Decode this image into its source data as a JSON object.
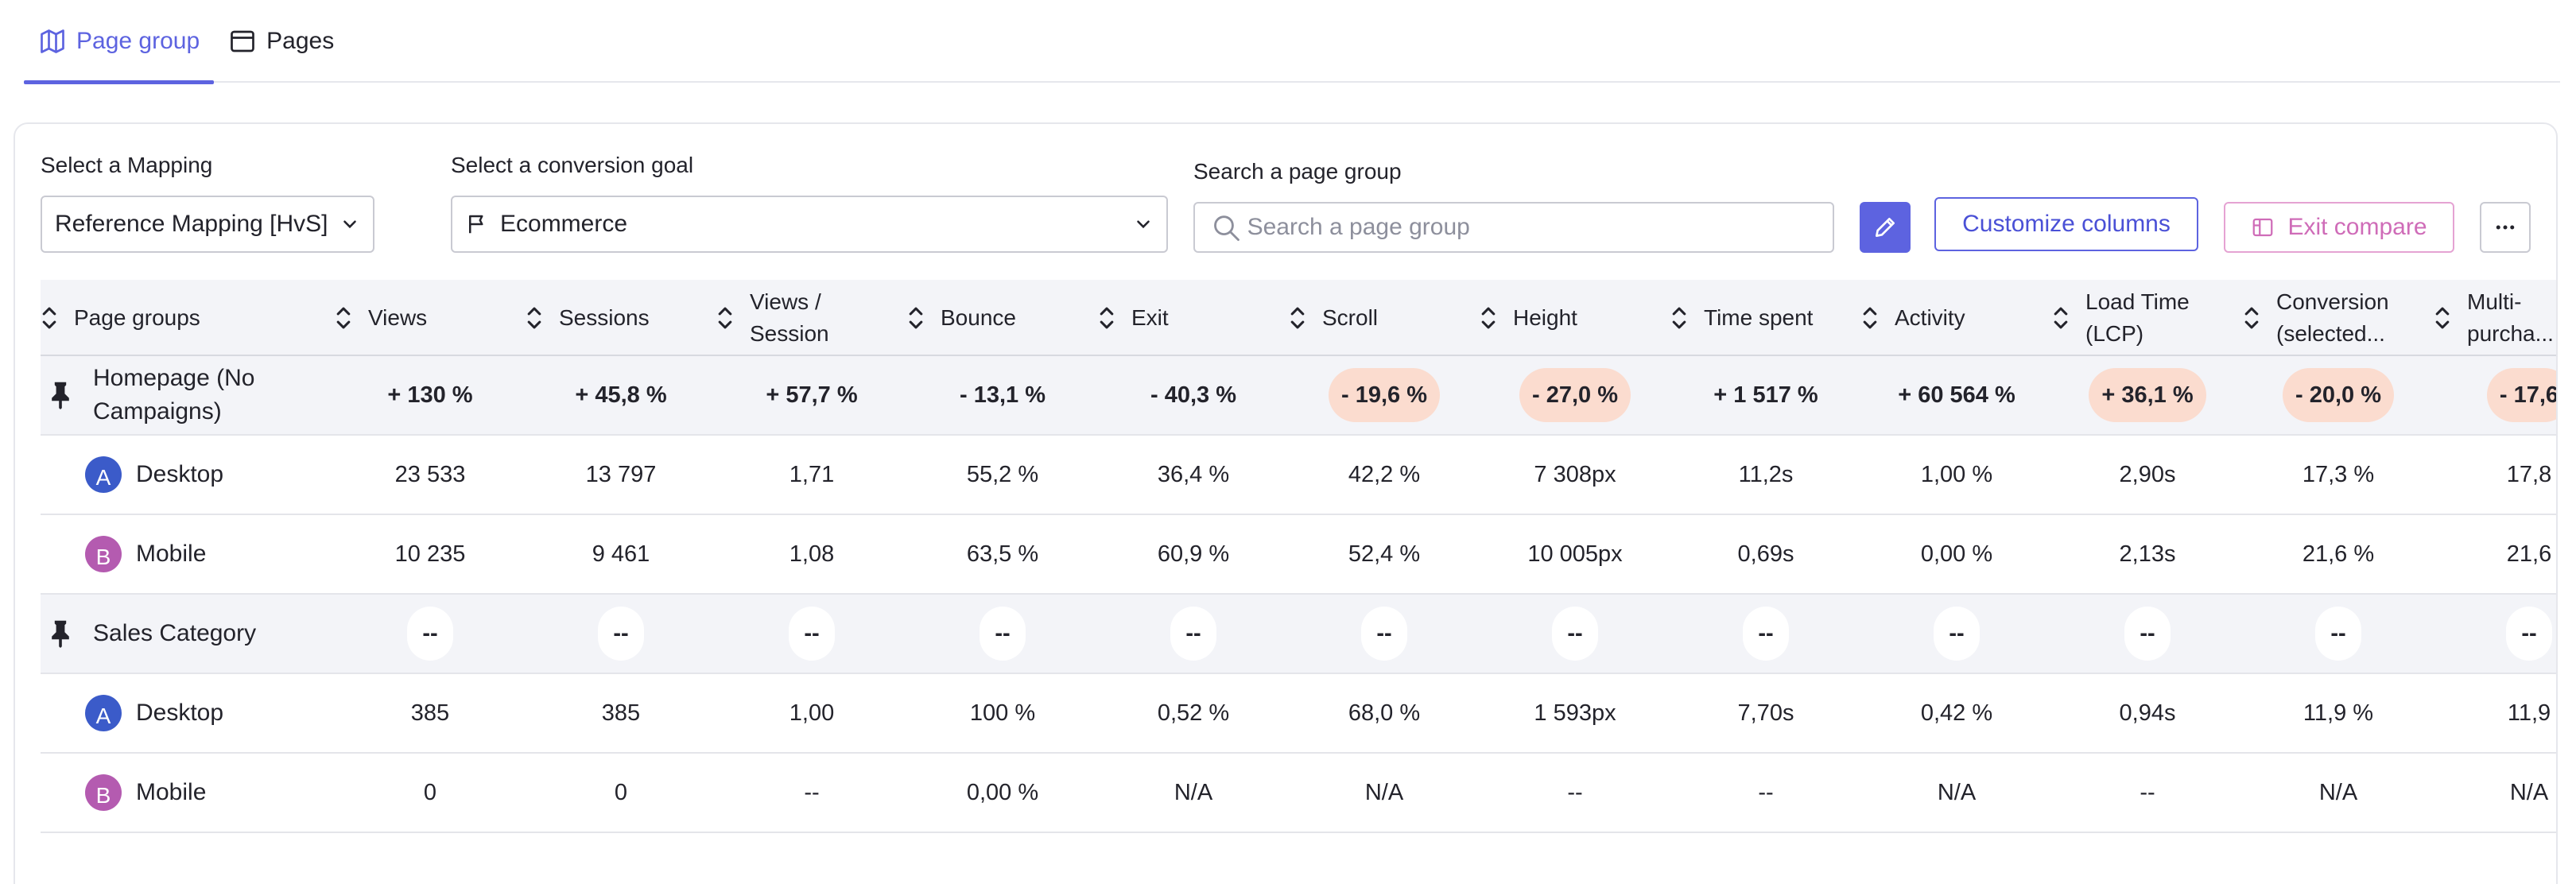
{
  "tabs": [
    {
      "label": "Page group",
      "icon": "map-icon",
      "active": true
    },
    {
      "label": "Pages",
      "icon": "browser-window-icon",
      "active": false
    }
  ],
  "controls": {
    "mapping_label": "Select a Mapping",
    "mapping_value": "Reference Mapping [HvS]",
    "goal_label": "Select a conversion goal",
    "goal_value": "Ecommerce",
    "search_label": "Search a page group",
    "search_placeholder": "Search a page group",
    "customize_label": "Customize columns",
    "exit_compare_label": "Exit compare"
  },
  "colors": {
    "accent": "#5d63e0",
    "exit_compare": "#cf6cb8",
    "negative_pill": "#fbdccf",
    "avatar_desktop": "#3b5bc9",
    "avatar_mobile": "#b45bb0"
  },
  "table": {
    "columns": [
      {
        "label": "Page groups"
      },
      {
        "label": "Views"
      },
      {
        "label": "Sessions"
      },
      {
        "label": "Views /\nSession"
      },
      {
        "label": "Bounce"
      },
      {
        "label": "Exit"
      },
      {
        "label": "Scroll"
      },
      {
        "label": "Height"
      },
      {
        "label": "Time spent"
      },
      {
        "label": "Activity"
      },
      {
        "label": "Load Time\n(LCP)"
      },
      {
        "label": "Conversion\n(selected..."
      },
      {
        "label": "Multi-\npurcha..."
      }
    ],
    "rows": [
      {
        "type": "group",
        "name": "Homepage (No\nCampaigns)",
        "cells": [
          {
            "v": "+ 130 %",
            "tone": "neutral"
          },
          {
            "v": "+ 45,8 %",
            "tone": "neutral"
          },
          {
            "v": "+ 57,7 %",
            "tone": "neutral"
          },
          {
            "v": "- 13,1 %",
            "tone": "neutral"
          },
          {
            "v": "- 40,3 %",
            "tone": "neutral"
          },
          {
            "v": "- 19,6 %",
            "tone": "bad"
          },
          {
            "v": "- 27,0 %",
            "tone": "bad"
          },
          {
            "v": "+ 1 517 %",
            "tone": "neutral"
          },
          {
            "v": "+ 60 564 %",
            "tone": "neutral"
          },
          {
            "v": "+ 36,1 %",
            "tone": "bad"
          },
          {
            "v": "- 20,0 %",
            "tone": "bad"
          },
          {
            "v": "- 17,6",
            "tone": "bad"
          }
        ]
      },
      {
        "type": "device",
        "avatar": "A",
        "avatar_kind": "desktop",
        "name": "Desktop",
        "cells": [
          "23 533",
          "13 797",
          "1,71",
          "55,2 %",
          "36,4 %",
          "42,2 %",
          "7 308px",
          "11,2s",
          "1,00 %",
          "2,90s",
          "17,3 %",
          "17,8"
        ]
      },
      {
        "type": "device",
        "avatar": "B",
        "avatar_kind": "mobile",
        "name": "Mobile",
        "cells": [
          "10 235",
          "9 461",
          "1,08",
          "63,5 %",
          "60,9 %",
          "52,4 %",
          "10 005px",
          "0,69s",
          "0,00 %",
          "2,13s",
          "21,6 %",
          "21,6"
        ]
      },
      {
        "type": "group",
        "name": "Sales Category",
        "cells": [
          {
            "v": "--",
            "tone": "empty"
          },
          {
            "v": "--",
            "tone": "empty"
          },
          {
            "v": "--",
            "tone": "empty"
          },
          {
            "v": "--",
            "tone": "empty"
          },
          {
            "v": "--",
            "tone": "empty"
          },
          {
            "v": "--",
            "tone": "empty"
          },
          {
            "v": "--",
            "tone": "empty"
          },
          {
            "v": "--",
            "tone": "empty"
          },
          {
            "v": "--",
            "tone": "empty"
          },
          {
            "v": "--",
            "tone": "empty"
          },
          {
            "v": "--",
            "tone": "empty"
          },
          {
            "v": "--",
            "tone": "empty"
          }
        ]
      },
      {
        "type": "device",
        "avatar": "A",
        "avatar_kind": "desktop",
        "name": "Desktop",
        "cells": [
          "385",
          "385",
          "1,00",
          "100 %",
          "0,52 %",
          "68,0 %",
          "1 593px",
          "7,70s",
          "0,42 %",
          "0,94s",
          "11,9 %",
          "11,9"
        ]
      },
      {
        "type": "device",
        "avatar": "B",
        "avatar_kind": "mobile",
        "name": "Mobile",
        "cells": [
          "0",
          "0",
          "--",
          "0,00 %",
          "N/A",
          "N/A",
          "--",
          "--",
          "N/A",
          "--",
          "N/A",
          "N/A"
        ]
      }
    ]
  }
}
